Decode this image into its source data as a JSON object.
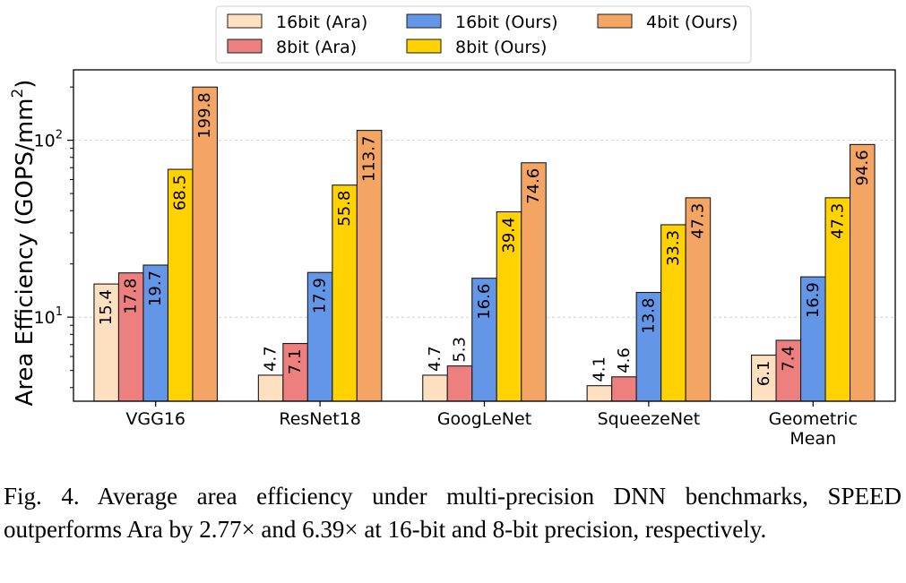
{
  "chart_data": {
    "type": "bar",
    "ylabel": "Area Efficiency (GOPS/mm²)",
    "ylabel_base": "Area Efficiency (GOPS/mm",
    "ylabel_sup": "2",
    "ylabel_close": ")",
    "yscale": "log",
    "ylim": [
      3.35,
      250
    ],
    "yticks": [
      {
        "value": 10,
        "base": "10",
        "exp": "1"
      },
      {
        "value": 100,
        "base": "10",
        "exp": "2"
      }
    ],
    "grid": "y-major-dashed",
    "legend": "top-center",
    "categories": [
      "VGG16",
      "ResNet18",
      "GoogLeNet",
      "SqueezeNet",
      "Geometric Mean"
    ],
    "category_lines": [
      [
        "VGG16"
      ],
      [
        "ResNet18"
      ],
      [
        "GoogLeNet"
      ],
      [
        "SqueezeNet"
      ],
      [
        "Geometric",
        "Mean"
      ]
    ],
    "series": [
      {
        "name": "16bit (Ara)",
        "color": "#FDE0C0",
        "values": [
          15.4,
          4.7,
          4.7,
          4.1,
          6.1
        ],
        "labels": [
          "15.4",
          "4.7",
          "4.7",
          "4.1",
          "6.1"
        ]
      },
      {
        "name": "8bit (Ara)",
        "color": "#EE7F7F",
        "values": [
          17.8,
          7.1,
          5.3,
          4.6,
          7.4
        ],
        "labels": [
          "17.8",
          "7.1",
          "5.3",
          "4.6",
          "7.4"
        ]
      },
      {
        "name": "16bit (Ours)",
        "color": "#6496E8",
        "values": [
          19.7,
          17.9,
          16.6,
          13.8,
          16.9
        ],
        "labels": [
          "19.7",
          "17.9",
          "16.6",
          "13.8",
          "16.9"
        ]
      },
      {
        "name": "8bit (Ours)",
        "color": "#FFD200",
        "values": [
          68.5,
          55.8,
          39.4,
          33.3,
          47.3
        ],
        "labels": [
          "68.5",
          "55.8",
          "39.4",
          "33.3",
          "47.3"
        ]
      },
      {
        "name": "4bit (Ours)",
        "color": "#F4A463",
        "values": [
          199.8,
          113.7,
          74.6,
          47.3,
          94.6
        ],
        "labels": [
          "199.8",
          "113.7",
          "74.6",
          "47.3",
          "94.6"
        ]
      }
    ]
  },
  "caption": {
    "text": "Fig. 4.  Average area efficiency under multi-precision DNN benchmarks, SPEED outperforms Ara by 2.77× and 6.39× at 16-bit and 8-bit precision, respectively."
  }
}
